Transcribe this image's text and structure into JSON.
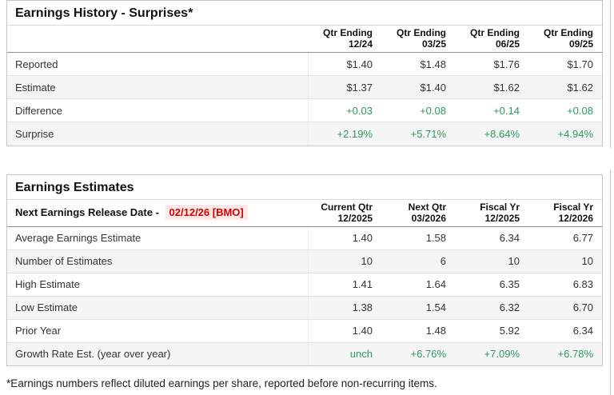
{
  "colors": {
    "positive_green": "#2e9960",
    "alert_red": "#d40000",
    "alert_red_bg": "#fde8e8",
    "stripe_gray": "#f5f5f5",
    "panel_border": "#c6c6c6"
  },
  "surprises": {
    "title": "Earnings History - Surprises*",
    "columns": [
      {
        "line1": "Qtr Ending",
        "line2": "12/24"
      },
      {
        "line1": "Qtr Ending",
        "line2": "03/25"
      },
      {
        "line1": "Qtr Ending",
        "line2": "06/25"
      },
      {
        "line1": "Qtr Ending",
        "line2": "09/25"
      }
    ],
    "rows": [
      {
        "label": "Reported",
        "values": [
          "$1.40",
          "$1.48",
          "$1.76",
          "$1.70"
        ],
        "green": false
      },
      {
        "label": "Estimate",
        "values": [
          "$1.37",
          "$1.40",
          "$1.62",
          "$1.62"
        ],
        "green": false
      },
      {
        "label": "Difference",
        "values": [
          "+0.03",
          "+0.08",
          "+0.14",
          "+0.08"
        ],
        "green": true
      },
      {
        "label": "Surprise",
        "values": [
          "+2.19%",
          "+5.71%",
          "+8.64%",
          "+4.94%"
        ],
        "green": true
      }
    ]
  },
  "estimates": {
    "title": "Earnings Estimates",
    "release_label": "Next Earnings Release Date - ",
    "release_date": "02/12/26 [BMO]",
    "columns": [
      {
        "line1": "Current Qtr",
        "line2": "12/2025"
      },
      {
        "line1": "Next Qtr",
        "line2": "03/2026"
      },
      {
        "line1": "Fiscal Yr",
        "line2": "12/2025"
      },
      {
        "line1": "Fiscal Yr",
        "line2": "12/2026"
      }
    ],
    "rows": [
      {
        "label": "Average Earnings Estimate",
        "values": [
          "1.40",
          "1.58",
          "6.34",
          "6.77"
        ],
        "green": false
      },
      {
        "label": "Number of Estimates",
        "values": [
          "10",
          "6",
          "10",
          "10"
        ],
        "green": false
      },
      {
        "label": "High Estimate",
        "values": [
          "1.41",
          "1.64",
          "6.35",
          "6.83"
        ],
        "green": false
      },
      {
        "label": "Low Estimate",
        "values": [
          "1.38",
          "1.54",
          "6.32",
          "6.70"
        ],
        "green": false
      },
      {
        "label": "Prior Year",
        "values": [
          "1.40",
          "1.48",
          "5.92",
          "6.34"
        ],
        "green": false
      },
      {
        "label": "Growth Rate Est. (year over year)",
        "values": [
          "unch",
          "+6.76%",
          "+7.09%",
          "+6.78%"
        ],
        "green": true
      }
    ]
  },
  "footnote": "*Earnings numbers reflect diluted earnings per share, reported before non-recurring items."
}
